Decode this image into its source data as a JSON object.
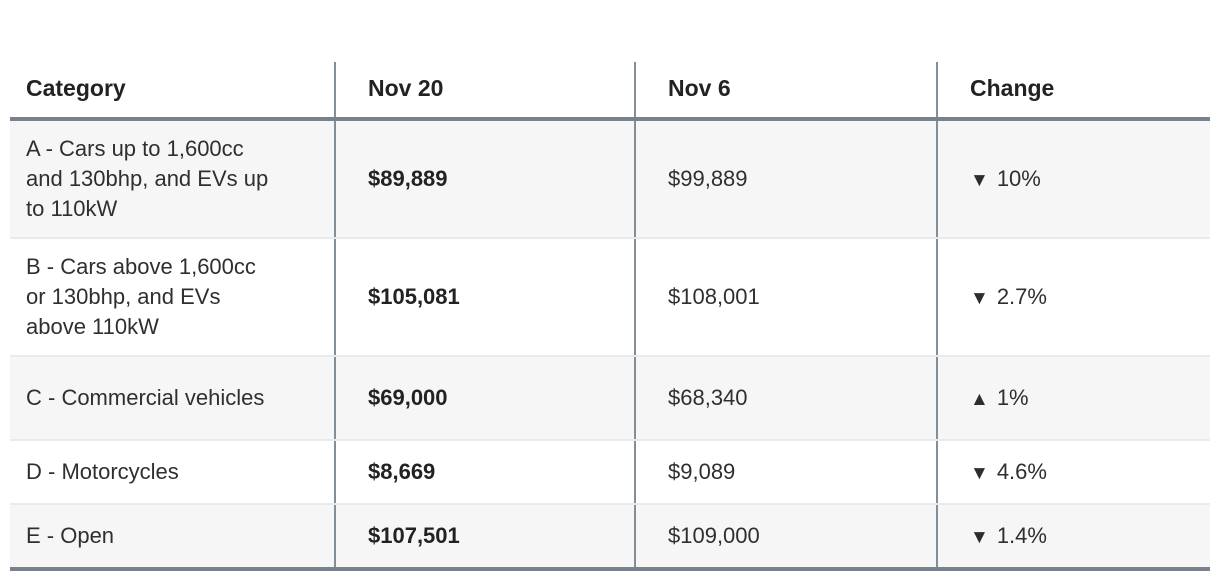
{
  "chart_data": {
    "type": "table",
    "columns": [
      "Category",
      "Nov 20",
      "Nov 6",
      "Change"
    ],
    "rows": [
      {
        "category": "A - Cars up to 1,600cc and 130bhp, and EVs up to 110kW",
        "nov20": "$89,889",
        "nov6": "$99,889",
        "change_icon": "▼",
        "change_value": "10%",
        "change_pct": -10
      },
      {
        "category": "B - Cars above 1,600cc or 130bhp, and EVs above 110kW",
        "nov20": "$105,081",
        "nov6": "$108,001",
        "change_icon": "▼",
        "change_value": "2.7%",
        "change_pct": -2.7
      },
      {
        "category": "C - Commercial vehicles",
        "nov20": "$69,000",
        "nov6": "$68,340",
        "change_icon": "▲",
        "change_value": "1%",
        "change_pct": 1
      },
      {
        "category": "D - Motorcycles",
        "nov20": "$8,669",
        "nov6": "$9,089",
        "change_icon": "▼",
        "change_value": "4.6%",
        "change_pct": -4.6
      },
      {
        "category": "E - Open",
        "nov20": "$107,501",
        "nov6": "$109,000",
        "change_icon": "▼",
        "change_value": "1.4%",
        "change_pct": -1.4
      }
    ]
  },
  "colors": {
    "heavy_border": "#78828c",
    "column_divider": "#848e96",
    "row_alt_bg": "#f6f6f7",
    "row_separator": "#e9eaea",
    "text": "#2f2f2f"
  }
}
